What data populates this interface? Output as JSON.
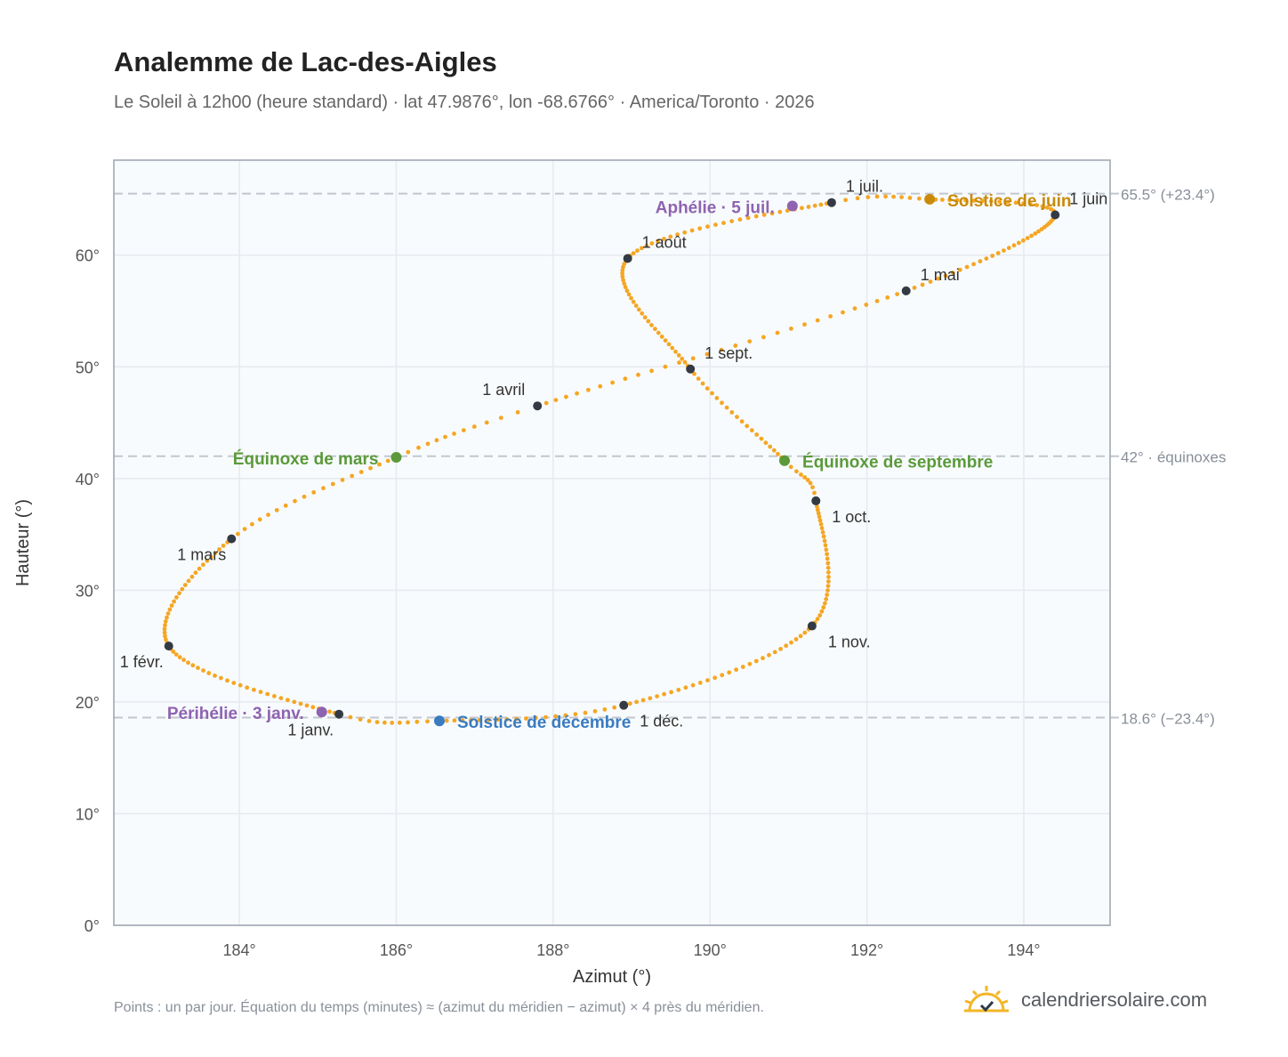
{
  "header": {
    "title": "Analemme de Lac-des-Aigles",
    "subtitle": "Le Soleil à 12h00 (heure standard) · lat 47.9876°, lon -68.6766° · America/Toronto · 2026"
  },
  "footer": {
    "note": "Points : un par jour. Équation du temps (minutes) ≈ (azimut du méridien − azimut) × 4 près du méridien.",
    "brand": "calendriersolaire.com"
  },
  "colors": {
    "curve": "#f5a623",
    "month_marker": "#333a44",
    "solstice_june": "#c98a0a",
    "solstice_december": "#3a7bc0",
    "equinox": "#5a9a3a",
    "aphelion_perihelion": "#8e63b0",
    "plot_bg": "#f8fbfd",
    "grid": "#e6eaef",
    "reference_line": "#c2c7cf",
    "brand_sun": "#f2b626"
  },
  "chart_data": {
    "type": "scatter",
    "xlabel": "Azimut (°)",
    "ylabel": "Hauteur (°)",
    "xlim": [
      182.4,
      195.1
    ],
    "ylim": [
      0,
      68.5
    ],
    "x_ticks": [
      184,
      186,
      188,
      190,
      192,
      194
    ],
    "y_ticks": [
      0,
      10,
      20,
      30,
      40,
      50,
      60
    ],
    "grid": true,
    "tick_suffix": "°",
    "curve_anchors": [
      {
        "doy": 1,
        "az": 185.27,
        "alt": 18.9
      },
      {
        "doy": 32,
        "az": 183.1,
        "alt": 25.0
      },
      {
        "doy": 60,
        "az": 183.9,
        "alt": 34.6
      },
      {
        "doy": 79,
        "az": 186.0,
        "alt": 41.9
      },
      {
        "doy": 91,
        "az": 187.8,
        "alt": 46.5
      },
      {
        "doy": 121,
        "az": 192.5,
        "alt": 56.8
      },
      {
        "doy": 152,
        "az": 194.4,
        "alt": 63.6
      },
      {
        "doy": 172,
        "az": 192.8,
        "alt": 65.0
      },
      {
        "doy": 182,
        "az": 191.55,
        "alt": 64.7
      },
      {
        "doy": 213,
        "az": 188.95,
        "alt": 59.7
      },
      {
        "doy": 244,
        "az": 189.75,
        "alt": 49.8
      },
      {
        "doy": 265,
        "az": 190.95,
        "alt": 41.6
      },
      {
        "doy": 274,
        "az": 191.35,
        "alt": 38.0
      },
      {
        "doy": 305,
        "az": 191.3,
        "alt": 26.8
      },
      {
        "doy": 335,
        "az": 188.9,
        "alt": 19.7
      },
      {
        "doy": 355,
        "az": 186.55,
        "alt": 18.3
      },
      {
        "doy": 366,
        "az": 185.27,
        "alt": 18.9
      }
    ],
    "reference_lines": [
      {
        "alt": 65.5,
        "label": "65.5° (+23.4°)"
      },
      {
        "alt": 42.0,
        "label": "42° · équinoxes"
      },
      {
        "alt": 18.6,
        "label": "18.6° (−23.4°)"
      }
    ],
    "month_markers": [
      {
        "label": "1 janv.",
        "az": 185.27,
        "alt": 18.9,
        "pos": "below-left"
      },
      {
        "label": "1 févr.",
        "az": 183.1,
        "alt": 25.0,
        "pos": "below-left"
      },
      {
        "label": "1 mars",
        "az": 183.9,
        "alt": 34.6,
        "pos": "below-left"
      },
      {
        "label": "1 avril",
        "az": 187.8,
        "alt": 46.5,
        "pos": "above-left"
      },
      {
        "label": "1 mai",
        "az": 192.5,
        "alt": 56.8,
        "pos": "above-right"
      },
      {
        "label": "1 juin",
        "az": 194.4,
        "alt": 63.6,
        "pos": "above-right"
      },
      {
        "label": "1 juil.",
        "az": 191.55,
        "alt": 64.7,
        "pos": "above-right"
      },
      {
        "label": "1 août",
        "az": 188.95,
        "alt": 59.7,
        "pos": "above-right"
      },
      {
        "label": "1 sept.",
        "az": 189.75,
        "alt": 49.8,
        "pos": "above-right"
      },
      {
        "label": "1 oct.",
        "az": 191.35,
        "alt": 38.0,
        "pos": "below-right"
      },
      {
        "label": "1 nov.",
        "az": 191.3,
        "alt": 26.8,
        "pos": "below-right"
      },
      {
        "label": "1 déc.",
        "az": 188.9,
        "alt": 19.7,
        "pos": "below-right"
      }
    ],
    "events": [
      {
        "label": "Solstice de juin",
        "az": 192.8,
        "alt": 65.0,
        "color": "#c98a0a",
        "pos": "right"
      },
      {
        "label": "Aphélie · 5 juil.",
        "az": 191.05,
        "alt": 64.4,
        "color": "#8e63b0",
        "pos": "left"
      },
      {
        "label": "Équinoxe de mars",
        "az": 186.0,
        "alt": 41.9,
        "color": "#5a9a3a",
        "pos": "left"
      },
      {
        "label": "Équinoxe de septembre",
        "az": 190.95,
        "alt": 41.6,
        "color": "#5a9a3a",
        "pos": "right"
      },
      {
        "label": "Périhélie · 3 janv.",
        "az": 185.05,
        "alt": 19.1,
        "color": "#8e63b0",
        "pos": "left"
      },
      {
        "label": "Solstice de décembre",
        "az": 186.55,
        "alt": 18.3,
        "color": "#3a7bc0",
        "pos": "right"
      }
    ]
  }
}
